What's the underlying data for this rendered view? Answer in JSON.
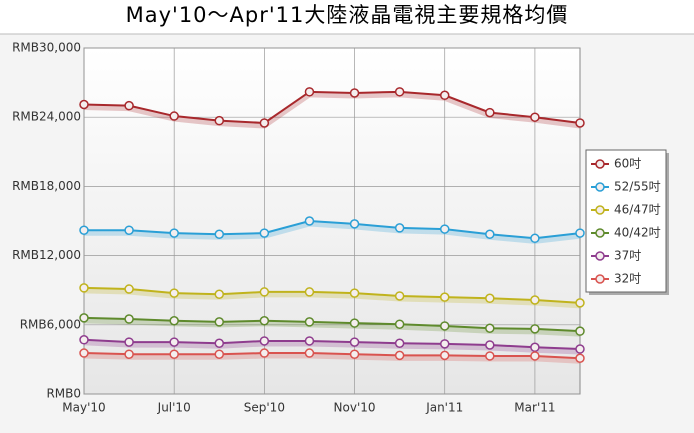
{
  "chart_data": {
    "type": "line",
    "title": "May'10～Apr'11大陸液晶電視主要規格均價",
    "categories": [
      "May'10",
      null,
      "Jul'10",
      null,
      "Sep'10",
      null,
      "Nov'10",
      null,
      "Jan'11",
      null,
      "Mar'11",
      null
    ],
    "series": [
      {
        "name": "60吋",
        "color": "#a8282c",
        "values": [
          25100,
          25000,
          24100,
          23700,
          23500,
          26200,
          26100,
          26200,
          25900,
          24400,
          24000,
          23500
        ]
      },
      {
        "name": "52/55吋",
        "color": "#2a9fd6",
        "values": [
          14200,
          14200,
          13950,
          13850,
          13950,
          15000,
          14750,
          14400,
          14300,
          13850,
          13500,
          13950
        ]
      },
      {
        "name": "46/47吋",
        "color": "#c0b31c",
        "values": [
          9200,
          9100,
          8750,
          8650,
          8850,
          8850,
          8750,
          8500,
          8400,
          8300,
          8150,
          7900
        ]
      },
      {
        "name": "40/42吋",
        "color": "#5e8a2c",
        "values": [
          6600,
          6500,
          6350,
          6250,
          6350,
          6250,
          6150,
          6050,
          5900,
          5700,
          5650,
          5450
        ]
      },
      {
        "name": "37吋",
        "color": "#8e3c8e",
        "values": [
          4700,
          4500,
          4500,
          4400,
          4600,
          4600,
          4500,
          4400,
          4350,
          4250,
          4050,
          3900
        ]
      },
      {
        "name": "32吋",
        "color": "#d9534f",
        "values": [
          3550,
          3450,
          3450,
          3450,
          3550,
          3550,
          3450,
          3350,
          3350,
          3300,
          3300,
          3100
        ]
      }
    ],
    "ylim": [
      0,
      30000
    ],
    "yticks": [
      {
        "value": 0,
        "label": "RMB0"
      },
      {
        "value": 6000,
        "label": "RMB6,000"
      },
      {
        "value": 12000,
        "label": "RMB12,000"
      },
      {
        "value": 18000,
        "label": "RMB18,000"
      },
      {
        "value": 24000,
        "label": "RMB24,000"
      },
      {
        "value": 30000,
        "label": "RMB30,000"
      }
    ],
    "grid": true,
    "legend": "right"
  }
}
